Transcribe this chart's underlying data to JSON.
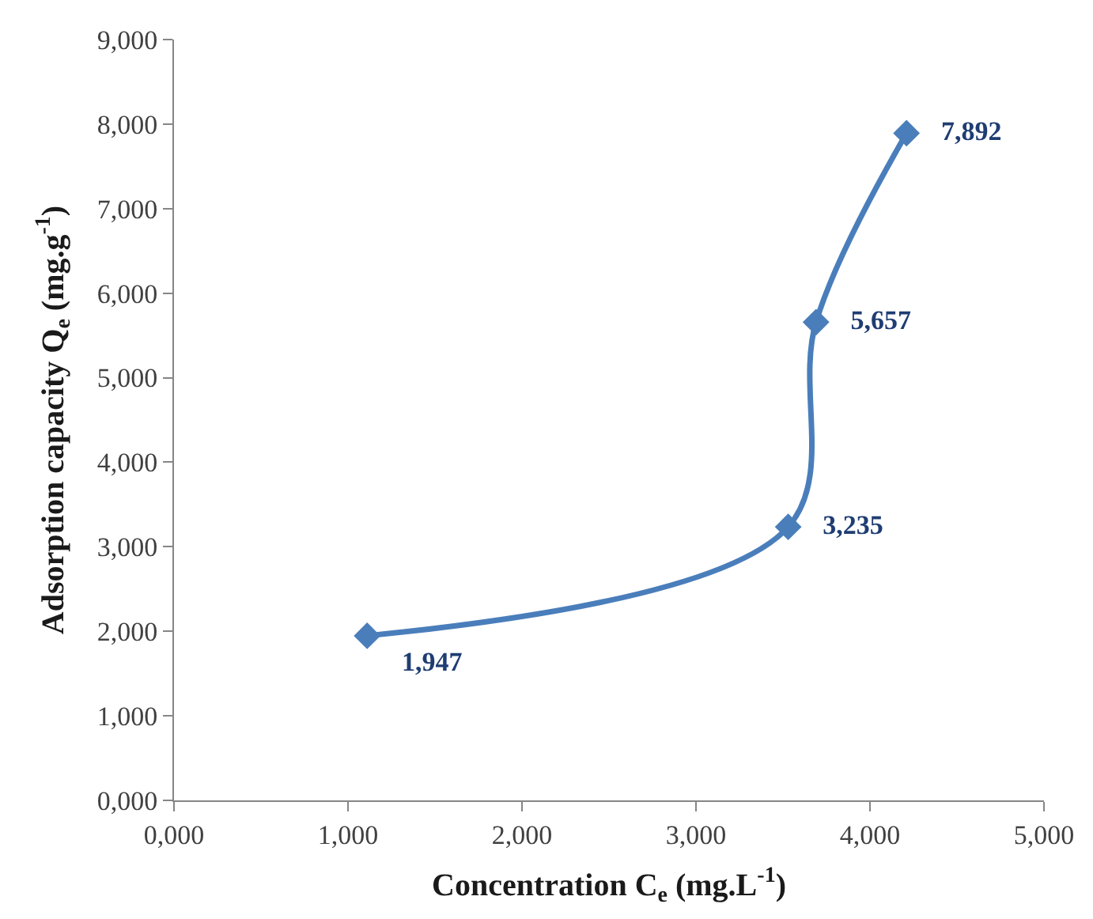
{
  "chart_data": {
    "type": "line",
    "xlabel": "Concentration C$_{e}$ (mg.L$^{-1}$)",
    "ylabel": "Adsorption capacity Q$_{e}$ (mg.g$^{-1}$)",
    "x": [
      1.11,
      3.53,
      3.69,
      4.21
    ],
    "series": [
      {
        "color": "#4a7ebb",
        "values": [
          1.947,
          3.235,
          5.657,
          7.892
        ],
        "value_labels": [
          "1,947",
          "3,235",
          "5,657",
          "7,892"
        ]
      }
    ],
    "xlim": [
      0,
      5
    ],
    "xticks": [
      {
        "value": 0,
        "label": "0,000"
      },
      {
        "value": 1,
        "label": "1,000"
      },
      {
        "value": 2,
        "label": "2,000"
      },
      {
        "value": 3,
        "label": "3,000"
      },
      {
        "value": 4,
        "label": "4,000"
      },
      {
        "value": 5,
        "label": "5,000"
      }
    ],
    "ylim": [
      0,
      9
    ],
    "yticks": [
      {
        "value": 0,
        "label": "0,000"
      },
      {
        "value": 1,
        "label": "1,000"
      },
      {
        "value": 2,
        "label": "2,000"
      },
      {
        "value": 3,
        "label": "3,000"
      },
      {
        "value": 4,
        "label": "4,000"
      },
      {
        "value": 5,
        "label": "5,000"
      },
      {
        "value": 6,
        "label": "6,000"
      },
      {
        "value": 7,
        "label": "7,000"
      },
      {
        "value": 8,
        "label": "8,000"
      },
      {
        "value": 9,
        "label": "9,000"
      }
    ],
    "marker": "diamond",
    "line_style": "solid"
  }
}
